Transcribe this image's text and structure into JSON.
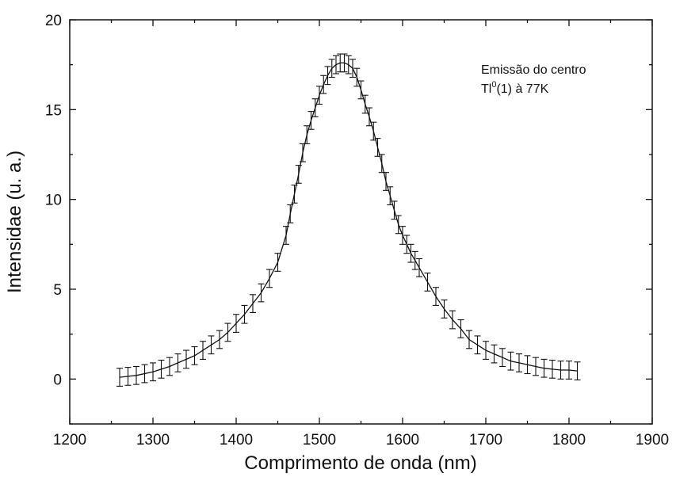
{
  "chart_data": {
    "type": "line",
    "title": "",
    "xlabel": "Comprimento de onda (nm)",
    "ylabel": "Intensidae (u. a.)",
    "xlim": [
      1200,
      1900
    ],
    "ylim": [
      -2.5,
      20
    ],
    "xticks": [
      1200,
      1300,
      1400,
      1500,
      1600,
      1700,
      1800,
      1900
    ],
    "yticks": [
      0,
      5,
      10,
      15,
      20
    ],
    "grid": false,
    "annotation": {
      "line1": "Emissão do centro",
      "line2_prefix": "Tl",
      "line2_superscript": "0",
      "line2_suffix": "(1) à 77K"
    },
    "series": [
      {
        "x": [
          1260,
          1270,
          1280,
          1290,
          1300,
          1310,
          1320,
          1330,
          1340,
          1350,
          1360,
          1370,
          1380,
          1390,
          1400,
          1410,
          1420,
          1430,
          1440,
          1450,
          1460,
          1465,
          1470,
          1475,
          1480,
          1485,
          1490,
          1495,
          1500,
          1505,
          1510,
          1515,
          1520,
          1525,
          1530,
          1535,
          1540,
          1545,
          1550,
          1555,
          1560,
          1565,
          1570,
          1575,
          1580,
          1585,
          1590,
          1595,
          1600,
          1605,
          1610,
          1615,
          1620,
          1630,
          1640,
          1650,
          1660,
          1670,
          1680,
          1690,
          1700,
          1710,
          1720,
          1730,
          1740,
          1750,
          1760,
          1770,
          1780,
          1790,
          1800,
          1810
        ],
        "y": [
          0.1,
          0.15,
          0.2,
          0.3,
          0.4,
          0.55,
          0.7,
          0.9,
          1.1,
          1.3,
          1.6,
          1.9,
          2.2,
          2.6,
          3.1,
          3.6,
          4.2,
          4.8,
          5.6,
          6.5,
          8.0,
          9.2,
          10.3,
          11.4,
          12.6,
          13.6,
          14.4,
          15.1,
          15.8,
          16.4,
          16.9,
          17.3,
          17.5,
          17.6,
          17.6,
          17.5,
          17.3,
          16.8,
          16.1,
          15.3,
          14.6,
          13.8,
          12.9,
          12.0,
          11.0,
          10.2,
          9.4,
          8.6,
          8.0,
          7.5,
          7.0,
          6.6,
          6.2,
          5.4,
          4.6,
          3.9,
          3.3,
          2.8,
          2.2,
          1.9,
          1.6,
          1.4,
          1.2,
          1.0,
          0.9,
          0.8,
          0.7,
          0.6,
          0.55,
          0.5,
          0.5,
          0.45
        ],
        "yerr": 0.5
      }
    ]
  }
}
